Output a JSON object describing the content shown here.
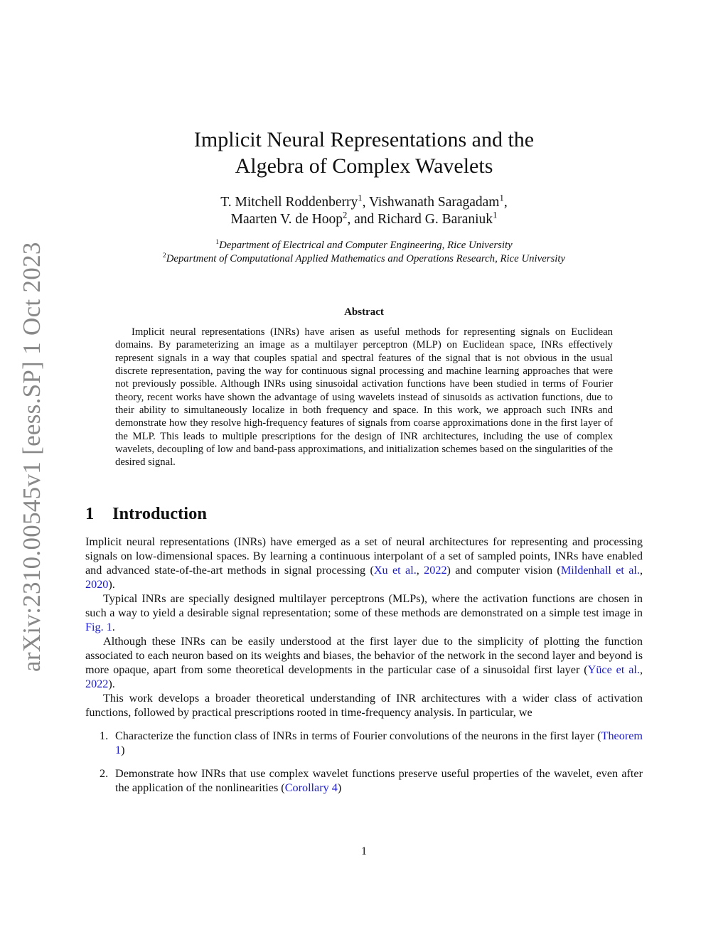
{
  "arxiv_stamp": "arXiv:2310.00545v1  [eess.SP]  1 Oct 2023",
  "title_lines": [
    "Implicit Neural Representations and the",
    "Algebra of Complex Wavelets"
  ],
  "authors": [
    {
      "name": "T. Mitchell Roddenberry",
      "aff": "1",
      "sep": ", "
    },
    {
      "name": "Vishwanath Saragadam",
      "aff": "1",
      "sep": ","
    },
    {
      "name": "Maarten V. de Hoop",
      "aff": "2",
      "sep": ", and "
    },
    {
      "name": "Richard G. Baraniuk",
      "aff": "1",
      "sep": ""
    }
  ],
  "affiliations": [
    {
      "mark": "1",
      "text": "Department of Electrical and Computer Engineering, Rice University"
    },
    {
      "mark": "2",
      "text": "Department of Computational Applied Mathematics and Operations Research, Rice University"
    }
  ],
  "abstract": {
    "heading": "Abstract",
    "text": "Implicit neural representations (INRs) have arisen as useful methods for representing signals on Euclidean domains.  By parameterizing an image as a multilayer perceptron (MLP) on Euclidean space, INRs effectively represent signals in a way that couples spatial and spectral features of the signal that is not obvious in the usual discrete representation, paving the way for continuous signal processing and machine learning approaches that were not previously possible.  Although INRs using sinusoidal activation functions have been studied in terms of Fourier theory, recent works have shown the advantage of using wavelets instead of sinusoids as activation functions, due to their ability to simultaneously localize in both frequency and space.  In this work, we approach such INRs and demonstrate how they resolve high-frequency features of signals from coarse approximations done in the first layer of the MLP. This leads to multiple prescriptions for the design of INR architectures, including the use of complex wavelets, decoupling of low and band-pass approximations, and initialization schemes based on the singularities of the desired signal."
  },
  "section": {
    "number": "1",
    "title": "Introduction"
  },
  "paragraphs": [
    [
      {
        "t": "Implicit neural representations (INRs) have emerged as a set of neural architectures for representing and processing signals on low-dimensional spaces.  By learning a continuous interpolant of a set of sampled points, INRs have enabled and advanced state-of-the-art methods in signal processing ("
      },
      {
        "t": "Xu et al.",
        "link": true
      },
      {
        "t": ", "
      },
      {
        "t": "2022",
        "link": true
      },
      {
        "t": ") and computer vision ("
      },
      {
        "t": "Mildenhall et al.",
        "link": true
      },
      {
        "t": ", "
      },
      {
        "t": "2020",
        "link": true
      },
      {
        "t": ")."
      }
    ],
    [
      {
        "t": "Typical INRs are specially designed multilayer perceptrons (MLPs), where the activation functions are chosen in such a way to yield a desirable signal representation; some of these methods are demonstrated on a simple test image in "
      },
      {
        "t": "Fig. 1",
        "link": true
      },
      {
        "t": "."
      }
    ],
    [
      {
        "t": "Although these INRs can be easily understood at the first layer due to the simplicity of plotting the function associated to each neuron based on its weights and biases, the behavior of the network in the second layer and beyond is more opaque, apart from some theoretical developments in the particular case of a sinusoidal first layer ("
      },
      {
        "t": "Yüce et al.",
        "link": true
      },
      {
        "t": ", "
      },
      {
        "t": "2022",
        "link": true
      },
      {
        "t": ")."
      }
    ],
    [
      {
        "t": "This work develops a broader theoretical understanding of INR architectures with a wider class of activation functions, followed by practical prescriptions rooted in time-frequency analysis. In particular, we"
      }
    ]
  ],
  "list_items": [
    {
      "n": "1.",
      "parts": [
        {
          "t": "Characterize the function class of INRs in terms of Fourier convolutions of the neurons in the first layer ("
        },
        {
          "t": "Theorem 1",
          "link": true
        },
        {
          "t": ")"
        }
      ]
    },
    {
      "n": "2.",
      "parts": [
        {
          "t": "Demonstrate how INRs that use complex wavelet functions preserve useful properties of the wavelet, even after the application of the nonlinearities ("
        },
        {
          "t": "Corollary 4",
          "link": true
        },
        {
          "t": ")"
        }
      ]
    }
  ],
  "page_number": "1",
  "colors": {
    "link": "#1a1acc",
    "stamp": "#888888"
  }
}
